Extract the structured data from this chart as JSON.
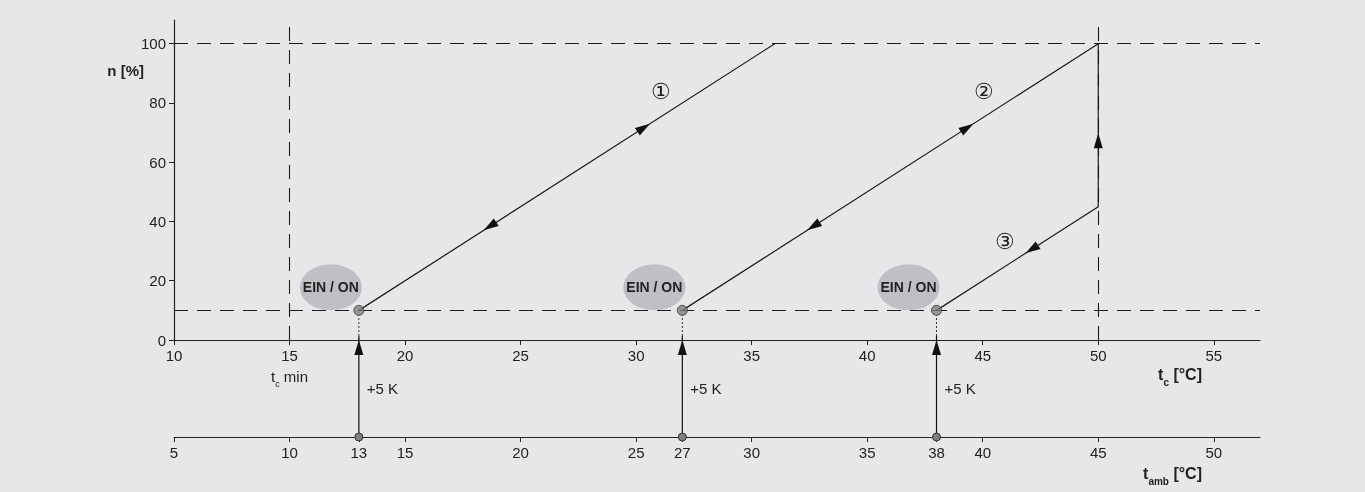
{
  "chart_data": {
    "type": "line",
    "ylabel": "n [%]",
    "xlabel": "t$_{c}$ [°C]",
    "x2label": "t$_{amb}$ [°C]",
    "xlim": [
      10,
      57
    ],
    "xticks": [
      10,
      15,
      20,
      25,
      30,
      35,
      40,
      45,
      50,
      55
    ],
    "x2lim": [
      5,
      52
    ],
    "x2ticks": [
      5,
      10,
      13,
      15,
      20,
      25,
      27,
      30,
      35,
      38,
      40,
      45,
      50
    ],
    "ylim": [
      0,
      108
    ],
    "yticks": [
      0,
      20,
      40,
      60,
      80,
      100
    ],
    "marker": "none",
    "line_style": "solid",
    "series": [
      {
        "name": "①",
        "color": "#1a1a1a",
        "x": [
          18,
          36
        ],
        "values": [
          10,
          100
        ]
      },
      {
        "name": "②",
        "color": "#1a1a1a",
        "x": [
          32,
          50
        ],
        "values": [
          10,
          100
        ]
      },
      {
        "name": "③",
        "color": "#1a1a1a",
        "x": [
          43,
          50,
          50
        ],
        "values": [
          10,
          45,
          100
        ]
      },
      {
        "type": "scatter",
        "marker": "circle",
        "color": "#808080",
        "x": [
          18,
          32,
          43
        ],
        "values": [
          10,
          10,
          10
        ]
      }
    ],
    "ref_lines": [
      {
        "axis": "x",
        "value": 15,
        "label": "t$_{c}$ min",
        "line_style": "dashed",
        "color": "#1a1a1a"
      },
      {
        "axis": "x",
        "value": 50,
        "line_style": "dashed",
        "color": "#1a1a1a"
      },
      {
        "axis": "y",
        "value": 10,
        "line_style": "dashed",
        "color": "#1a1a1a"
      },
      {
        "axis": "y",
        "value": 100,
        "line_style": "dashed",
        "color": "#1a1a1a"
      }
    ],
    "annotations": [
      {
        "text": "EIN / ON",
        "x": 18,
        "y": 10
      },
      {
        "text": "EIN / ON",
        "x": 32,
        "y": 10
      },
      {
        "text": "EIN / ON",
        "x": 43,
        "y": 10
      },
      "+5 K",
      "+5 K",
      "+5 K"
    ]
  }
}
